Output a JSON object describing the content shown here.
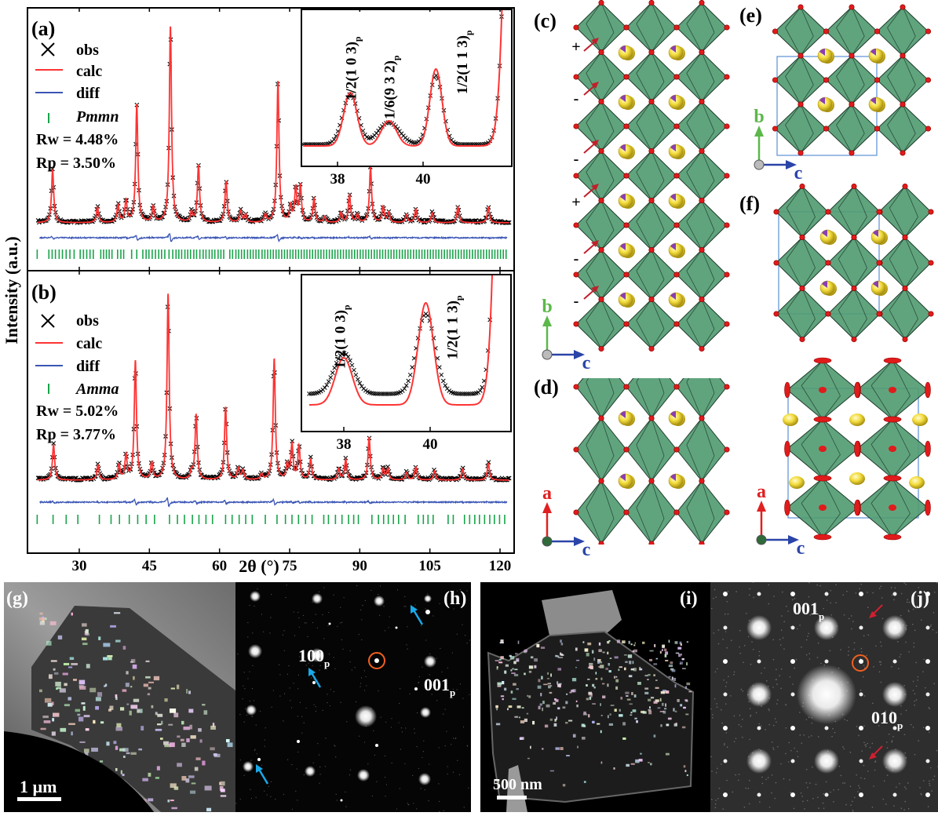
{
  "figure": {
    "ylabel": "Intensity (a.u.)",
    "xlabel": "2θ (°)",
    "panel_labels": {
      "a": "(a)",
      "b": "(b)",
      "c": "(c)",
      "d": "(d)",
      "e": "(e)",
      "f": "(f)",
      "g": "(g)",
      "h": "(h)",
      "i": "(i)",
      "j": "(j)"
    }
  },
  "colors": {
    "obs": "#000000",
    "calc": "#ff3333",
    "diff": "#3a55b5",
    "bragg": "#1aa34a",
    "octahedron": "#4f9a70",
    "oxygen": "#e01b1b",
    "a_site": "#f3dc3c"
  },
  "chart_data": [
    {
      "type": "line",
      "panel": "(a)",
      "xlim": [
        21,
        122
      ],
      "xticks": [
        30,
        45,
        60,
        75,
        90,
        105,
        120
      ],
      "legend": {
        "obs": "obs",
        "calc": "calc",
        "diff": "diff",
        "phase": "Pmmn"
      },
      "stats": [
        "Rw = 4.48%",
        "Rp = 3.50%"
      ],
      "calc_peaks": [
        [
          24.3,
          27
        ],
        [
          33.9,
          8
        ],
        [
          38.3,
          9
        ],
        [
          40.0,
          11
        ],
        [
          42.3,
          60
        ],
        [
          45.8,
          8
        ],
        [
          49.5,
          100
        ],
        [
          54.0,
          5
        ],
        [
          55.5,
          29
        ],
        [
          61.4,
          21
        ],
        [
          64.5,
          6
        ],
        [
          65.6,
          4
        ],
        [
          69.8,
          4
        ],
        [
          72.5,
          72
        ],
        [
          75.2,
          8
        ],
        [
          76.3,
          17
        ],
        [
          77.3,
          18
        ],
        [
          80.2,
          12
        ],
        [
          82.5,
          3
        ],
        [
          86.0,
          5
        ],
        [
          87.8,
          14
        ],
        [
          89.5,
          4
        ],
        [
          92.3,
          28
        ],
        [
          95.0,
          8
        ],
        [
          96.2,
          5
        ],
        [
          100.0,
          4
        ],
        [
          102.0,
          7
        ],
        [
          105.5,
          5
        ],
        [
          111.0,
          8
        ],
        [
          117.5,
          8
        ]
      ],
      "bragg_ticks": [
        21.0,
        23.5,
        24.2,
        24.9,
        25.7,
        26.4,
        27.2,
        28.0,
        28.9,
        30.2,
        30.9,
        31.6,
        32.3,
        33.0,
        34.6,
        35.2,
        35.8,
        36.4,
        37.0,
        38.2,
        38.9,
        39.5,
        41.2,
        42.3,
        43.6,
        44.3,
        44.9,
        45.6,
        46.3,
        47.0,
        47.6,
        48.3,
        49.2,
        50.0,
        50.7,
        51.3,
        51.9,
        52.6,
        53.2,
        53.8,
        54.5,
        55.1,
        55.8,
        56.5,
        57.1,
        57.8,
        58.4,
        59.0,
        59.7,
        60.3,
        60.9,
        62.2,
        62.8,
        63.5,
        64.1,
        64.7,
        65.3,
        66.0,
        66.6,
        67.2,
        67.8,
        68.4,
        69.1,
        69.7,
        70.3,
        70.9,
        71.5,
        72.1,
        72.7,
        73.3,
        73.9,
        74.5,
        75.1,
        75.7,
        76.3,
        76.9,
        77.5,
        78.1,
        78.7,
        79.3,
        79.9,
        80.5,
        81.1,
        81.7,
        82.3,
        82.9,
        83.5,
        84.1,
        84.7,
        85.3,
        85.9,
        86.5,
        87.1,
        87.7,
        88.3,
        88.9,
        89.5,
        90.1,
        90.7,
        91.3,
        91.9,
        92.5,
        93.1,
        93.7,
        94.3,
        94.9,
        95.5,
        96.1,
        96.7,
        97.3,
        97.9,
        98.5,
        99.1,
        99.7,
        100.3,
        100.9,
        101.5,
        102.1,
        102.7,
        103.3,
        103.9,
        104.5,
        105.1,
        105.7,
        106.3,
        106.9,
        107.5,
        108.1,
        108.7,
        109.3,
        109.9,
        110.5,
        111.1,
        111.7,
        112.3,
        112.9,
        113.5,
        114.1,
        114.7,
        115.3,
        115.9,
        116.5,
        117.1,
        117.7,
        118.3,
        118.9,
        119.5,
        120.1,
        120.7,
        121.3
      ],
      "inset": {
        "xlim": [
          37.1,
          42.0
        ],
        "xticks": [
          38,
          40
        ],
        "ylim": [
          0,
          100
        ],
        "annotations": [
          {
            "text": "1/2(1 0 3)",
            "sub": "p",
            "x": 38.3
          },
          {
            "text": "1/6(9 3 2)",
            "sub": "p",
            "x": 39.2
          },
          {
            "text": "1/2(1 1 3)",
            "sub": "p",
            "x": 40.9
          }
        ],
        "calc_background": 13,
        "calc_peaks": [
          [
            38.3,
            34,
            0.22
          ],
          [
            39.2,
            16,
            0.25
          ],
          [
            40.3,
            49,
            0.2
          ],
          [
            42.3,
            900,
            0.3
          ]
        ],
        "obs_background": 14,
        "obs_peaks": [
          [
            38.3,
            32,
            0.25
          ],
          [
            39.2,
            14,
            0.35
          ],
          [
            40.3,
            44,
            0.22
          ],
          [
            42.3,
            900,
            0.3
          ]
        ]
      }
    },
    {
      "type": "line",
      "panel": "(b)",
      "xlim": [
        21,
        122
      ],
      "xticks": [
        30,
        45,
        60,
        75,
        90,
        105,
        120
      ],
      "legend": {
        "obs": "obs",
        "calc": "calc",
        "diff": "diff",
        "phase": "Amma"
      },
      "stats": [
        "Rw = 5.02%",
        "Rp = 3.77%"
      ],
      "calc_peaks": [
        [
          24.5,
          19
        ],
        [
          34.0,
          8
        ],
        [
          38.5,
          8
        ],
        [
          40.0,
          13
        ],
        [
          42.0,
          64
        ],
        [
          45.5,
          9
        ],
        [
          49.0,
          100
        ],
        [
          54.0,
          4
        ],
        [
          55.0,
          35
        ],
        [
          61.3,
          39
        ],
        [
          64.0,
          6
        ],
        [
          65.0,
          5
        ],
        [
          69.0,
          3
        ],
        [
          71.7,
          65
        ],
        [
          74.5,
          8
        ],
        [
          75.5,
          19
        ],
        [
          77.0,
          18
        ],
        [
          79.5,
          11
        ],
        [
          85.5,
          6
        ],
        [
          87.0,
          11
        ],
        [
          92.0,
          23
        ],
        [
          95.0,
          6
        ],
        [
          96.0,
          6
        ],
        [
          100.0,
          4
        ],
        [
          102.0,
          7
        ],
        [
          106.0,
          5
        ],
        [
          112.0,
          6
        ],
        [
          117.5,
          9
        ]
      ],
      "bragg_ticks": [
        21.0,
        24.4,
        27.2,
        29.7,
        34.3,
        36.8,
        38.6,
        40.7,
        42.5,
        44.3,
        46.1,
        49.3,
        51.0,
        52.5,
        54.2,
        55.6,
        57.1,
        58.5,
        61.3,
        62.7,
        64.2,
        65.6,
        67.0,
        69.8,
        72.3,
        74.1,
        75.5,
        76.9,
        78.4,
        79.8,
        82.3,
        83.3,
        84.8,
        86.2,
        87.6,
        88.7,
        89.7,
        92.6,
        94.0,
        95.1,
        96.1,
        97.2,
        98.3,
        99.7,
        102.5,
        103.6,
        104.6,
        105.7,
        108.9,
        110.0,
        112.4,
        113.5,
        114.6,
        115.6,
        116.7,
        117.8,
        118.8,
        119.9,
        121.0
      ],
      "inset": {
        "xlim": [
          37.1,
          41.9
        ],
        "xticks": [
          38,
          40
        ],
        "ylim": [
          0,
          100
        ],
        "annotations": [
          {
            "text": "1/2(1 0 3)",
            "sub": "p",
            "x": 37.9
          },
          {
            "text": "1/2(1 1 3)",
            "sub": "p",
            "x": 40.5
          }
        ],
        "calc_background": 17,
        "calc_peaks": [
          [
            38.0,
            30,
            0.28
          ],
          [
            39.9,
            65,
            0.25
          ],
          [
            41.9,
            900,
            0.3
          ]
        ],
        "obs_background": 24,
        "obs_peaks": [
          [
            38.0,
            26,
            0.32
          ],
          [
            39.9,
            51,
            0.3
          ],
          [
            41.9,
            900,
            0.3
          ]
        ]
      }
    }
  ],
  "structures": {
    "c": {
      "signs": [
        "+",
        "-",
        "-",
        "+",
        "-",
        "-"
      ],
      "axes": {
        "up": "b",
        "right": "c"
      }
    },
    "d": {
      "axes": {
        "up": "a",
        "right": "c"
      }
    },
    "e": {
      "axes": {
        "up": "b",
        "right": "c"
      }
    },
    "ellipsoid": {
      "axes": {
        "up": "a",
        "right": "c"
      }
    }
  },
  "micrographs": {
    "g": {
      "scale_bar": "1 µm"
    },
    "h": {
      "spot_labels": [
        {
          "text": "100",
          "sub": "p"
        },
        {
          "text": "001",
          "sub": "p"
        }
      ]
    },
    "i": {
      "scale_bar": "500 nm"
    },
    "j": {
      "spot_labels": [
        {
          "text": "001",
          "sub": "p"
        },
        {
          "text": "010",
          "sub": "p"
        }
      ]
    }
  }
}
